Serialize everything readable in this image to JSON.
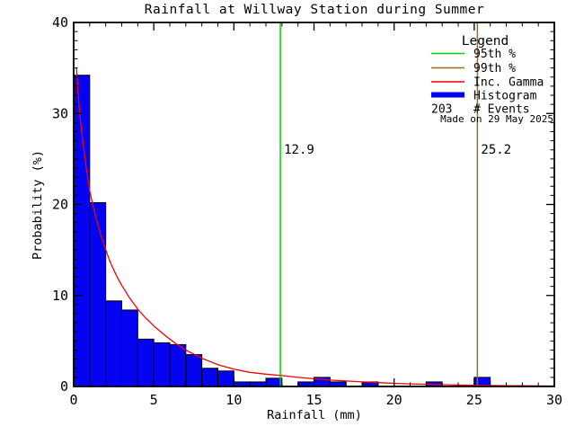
{
  "title": "Rainfall at Willway Station during Summer",
  "watermark_text": "Made on 29 May 2025",
  "colors": {
    "background": "#ffffff",
    "axis": "#000000",
    "histogram_fill": "#0404f2",
    "bar_outline": "#000000",
    "gamma_curve": "#f20000",
    "percentile_95": "#00d400",
    "percentile_99": "#a2691e",
    "watermark": "#d4d4d4"
  },
  "chart_data": {
    "type": "bar",
    "subtype": "histogram-with-fit-curve",
    "title": "Rainfall at Willway Station during Summer",
    "xlabel": "Rainfall (mm)",
    "ylabel": "Probability (%)",
    "xlim": [
      0,
      30
    ],
    "ylim": [
      0,
      40
    ],
    "x_major_ticks": [
      0,
      5,
      10,
      15,
      20,
      25,
      30
    ],
    "x_minor_step": 1,
    "y_major_ticks": [
      0,
      10,
      20,
      30,
      40
    ],
    "y_minor_step": 1,
    "grid": false,
    "frame_box": true,
    "bin_width_mm": 1,
    "bin_start_mm": 0,
    "histogram_percent": [
      34.2,
      20.2,
      9.4,
      8.4,
      5.2,
      4.8,
      4.6,
      3.5,
      2.0,
      1.7,
      0.5,
      0.5,
      0.9,
      0,
      0.5,
      1.0,
      0.5,
      0,
      0.5,
      0,
      0,
      0,
      0.5,
      0,
      0,
      1.0,
      0,
      0,
      0,
      0
    ],
    "n_events": 203,
    "percentile_95_value": 12.9,
    "percentile_95_label": "12.9",
    "percentile_99_value": 25.2,
    "percentile_99_label": "25.2",
    "gamma_curve_points": [
      [
        0.18,
        35.0
      ],
      [
        0.25,
        33.0
      ],
      [
        0.35,
        30.5
      ],
      [
        0.5,
        28.0
      ],
      [
        0.65,
        25.8
      ],
      [
        0.8,
        23.8
      ],
      [
        1.0,
        21.5
      ],
      [
        1.2,
        19.9
      ],
      [
        1.5,
        17.8
      ],
      [
        1.75,
        16.3
      ],
      [
        2.0,
        15.0
      ],
      [
        2.25,
        13.8
      ],
      [
        2.5,
        12.8
      ],
      [
        2.75,
        11.9
      ],
      [
        3.0,
        11.1
      ],
      [
        3.25,
        10.4
      ],
      [
        3.5,
        9.7
      ],
      [
        3.75,
        9.1
      ],
      [
        4.0,
        8.5
      ],
      [
        4.25,
        8.0
      ],
      [
        4.5,
        7.5
      ],
      [
        4.75,
        7.1
      ],
      [
        5.0,
        6.65
      ],
      [
        5.5,
        5.9
      ],
      [
        6.0,
        5.2
      ],
      [
        6.5,
        4.55
      ],
      [
        7.0,
        4.0
      ],
      [
        7.5,
        3.55
      ],
      [
        8.0,
        3.1
      ],
      [
        8.5,
        2.75
      ],
      [
        9.0,
        2.4
      ],
      [
        9.5,
        2.15
      ],
      [
        10.0,
        1.9
      ],
      [
        11.0,
        1.55
      ],
      [
        12.0,
        1.35
      ],
      [
        13.0,
        1.2
      ],
      [
        14.0,
        1.0
      ],
      [
        15.0,
        0.85
      ],
      [
        16.0,
        0.7
      ],
      [
        17.0,
        0.6
      ],
      [
        18.0,
        0.5
      ],
      [
        19.0,
        0.42
      ],
      [
        20.0,
        0.35
      ],
      [
        21.0,
        0.29
      ],
      [
        22.0,
        0.24
      ],
      [
        23.0,
        0.2
      ],
      [
        24.0,
        0.16
      ],
      [
        25.0,
        0.13
      ],
      [
        26.0,
        0.11
      ],
      [
        27.0,
        0.09
      ],
      [
        28.0,
        0.08
      ],
      [
        29.0,
        0.06
      ],
      [
        30.0,
        0.05
      ]
    ],
    "legend_position": "top-right-inside"
  },
  "legend": {
    "heading": "Legend",
    "items": [
      {
        "label": "95th %",
        "swatch": "line",
        "color": "#00d400"
      },
      {
        "label": "99th %",
        "swatch": "line",
        "color": "#a2691e"
      },
      {
        "label": "Inc. Gamma",
        "swatch": "line",
        "color": "#f20000"
      },
      {
        "label": "Histogram",
        "swatch": "bar",
        "color": "#0404f2"
      },
      {
        "label": "# Events",
        "swatch": "text",
        "text": "203"
      }
    ]
  }
}
